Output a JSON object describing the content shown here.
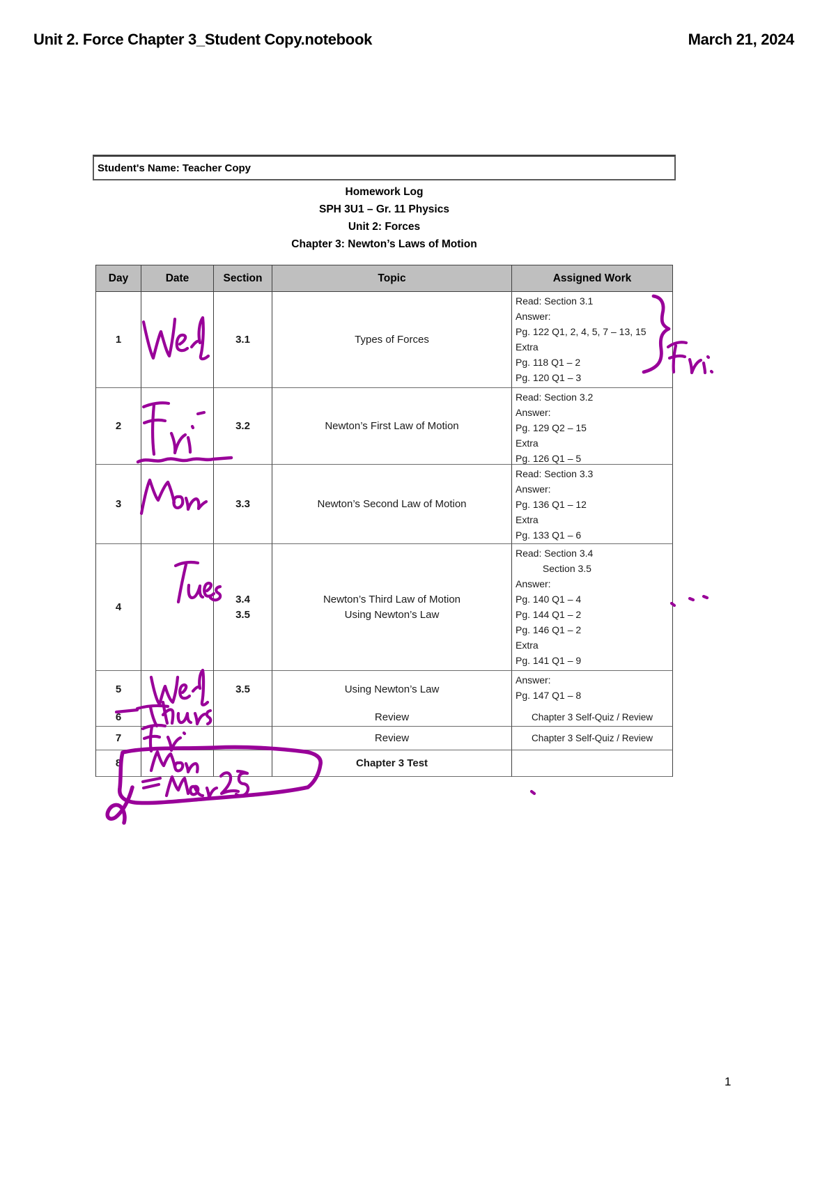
{
  "page": {
    "filename": "Unit 2. Force Chapter 3_Student Copy.notebook",
    "date": "March 21, 2024",
    "page_number": "1"
  },
  "student_box": {
    "label": "Student's Name: Teacher Copy"
  },
  "titles": [
    "Homework Log",
    "SPH 3U1 – Gr. 11 Physics",
    "Unit 2: Forces",
    "Chapter 3: Newton’s Laws of Motion"
  ],
  "table": {
    "headers": [
      "Day",
      "Date",
      "Section",
      "Topic",
      "Assigned Work"
    ],
    "rows": [
      {
        "day": "1",
        "date_written": "Wed",
        "section": "3.1",
        "topic": "Types of Forces",
        "assigned": [
          "Read: Section 3.1",
          "Answer:",
          "Pg. 122 Q1, 2, 4, 5, 7 – 13, 15",
          "Extra",
          "Pg. 118 Q1 – 2",
          "Pg. 120 Q1 – 3"
        ]
      },
      {
        "day": "2",
        "date_written": "Fri",
        "section": "3.2",
        "topic": "Newton’s First Law of Motion",
        "assigned": [
          "Read: Section 3.2",
          "Answer:",
          "Pg. 129 Q2 – 15",
          "Extra",
          "Pg. 126 Q1 – 5"
        ]
      },
      {
        "day": "3",
        "date_written": "Mon",
        "section": "3.3",
        "topic": "Newton’s Second Law of Motion",
        "assigned": [
          "Read: Section 3.3",
          "Answer:",
          "Pg. 136 Q1 – 12",
          "Extra",
          "Pg. 133 Q1 – 6"
        ]
      },
      {
        "day": "4",
        "date_written": "Tues",
        "section": "3.4\n3.5",
        "topic": "Newton’s Third Law of Motion\nUsing Newton’s Law",
        "assigned": [
          "Read: Section 3.4",
          "          Section 3.5",
          "Answer:",
          "Pg. 140 Q1 – 4",
          "Pg. 144 Q1 – 2",
          "Pg. 146 Q1 – 2",
          "Extra",
          "Pg. 141 Q1 – 9"
        ]
      },
      {
        "day": "5",
        "date_written": "Wed",
        "section": "3.5",
        "topic": "Using Newton’s Law",
        "assigned": [
          "Answer:",
          "Pg. 147 Q1 – 8"
        ]
      },
      {
        "day": "6",
        "date_written": "Thurs",
        "section": "",
        "topic": "Review",
        "assigned": [
          "Chapter 3 Self-Quiz / Review"
        ],
        "assigned_align": "center"
      },
      {
        "day": "7",
        "date_written": "Fri",
        "section": "",
        "topic": "Review",
        "assigned": [
          "Chapter 3 Self-Quiz / Review"
        ],
        "assigned_align": "center"
      },
      {
        "day": "8",
        "date_written": "Mon",
        "section": "",
        "topic": "Chapter 3 Test",
        "topic_bold": true,
        "assigned": []
      }
    ]
  },
  "annotations": {
    "ink_color": "#990099",
    "items": [
      {
        "name": "date-row-1",
        "text": "Wed"
      },
      {
        "name": "brace-note-row-1",
        "text": "Fri"
      },
      {
        "name": "date-row-2",
        "text": "Fri"
      },
      {
        "name": "underline-row-2",
        "text": ""
      },
      {
        "name": "date-row-3",
        "text": "Mon"
      },
      {
        "name": "date-row-4",
        "text": "Tues"
      },
      {
        "name": "dots-row-4",
        "text": ""
      },
      {
        "name": "date-row-5",
        "text": "Wed"
      },
      {
        "name": "date-row-6",
        "text": "Thurs"
      },
      {
        "name": "date-row-7",
        "text": "Fri"
      },
      {
        "name": "date-row-8",
        "text": "Mon"
      },
      {
        "name": "note-below-row-8",
        "text": "Mar 25"
      },
      {
        "name": "circle-around-row-8",
        "text": ""
      }
    ]
  }
}
